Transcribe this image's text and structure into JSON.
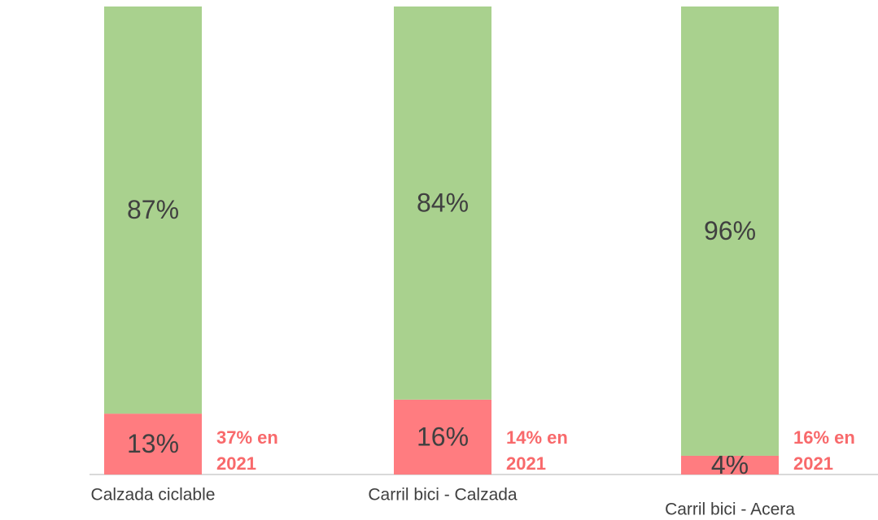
{
  "chart_data": {
    "type": "bar",
    "stacked": true,
    "categories": [
      "Calzada ciclable",
      "Carril bici - Calzada",
      "Carril bici - Acera"
    ],
    "series": [
      {
        "color": "#ff7c80",
        "values": [
          13,
          16,
          4
        ],
        "value_labels": [
          "13%",
          "16%",
          "4%"
        ]
      },
      {
        "color": "#a9d18e",
        "values": [
          87,
          84,
          96
        ],
        "value_labels": [
          "87%",
          "84%",
          "96%"
        ]
      }
    ],
    "annotations": [
      [
        "37% en",
        "2021"
      ],
      [
        "14% en",
        "2021"
      ],
      [
        "16% en",
        "2021"
      ]
    ],
    "ylim": [
      0,
      100
    ]
  }
}
